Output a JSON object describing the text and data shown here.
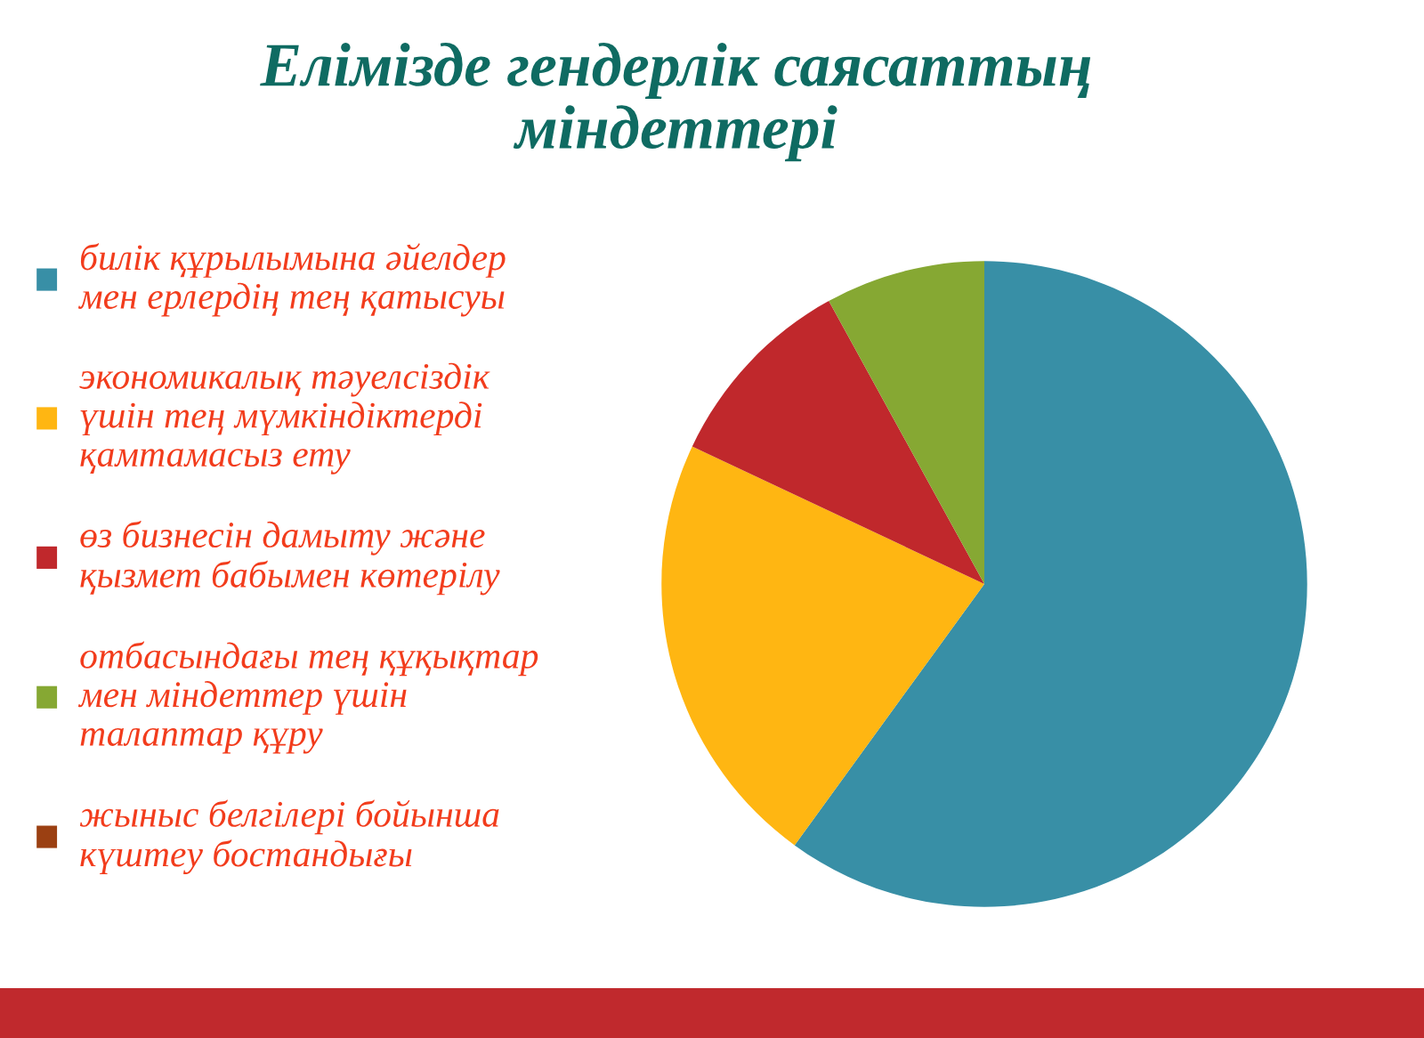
{
  "chart_data": {
    "type": "pie",
    "title": "Елімізде гендерлік саясаттың\nміндеттері",
    "categories": [
      "билік құрылымына әйелдер\nмен ерлердің тең қатысуы",
      "экономикалық тәуелсіздік\nүшін тең мүмкіндіктерді\nқамтамасыз ету",
      "өз бизнесін дамыту және\nқызмет бабымен көтерілу",
      "отбасындағы тең құқықтар\nмен міндеттер үшін\nталаптар құру",
      "жыныс белгілері бойынша\nкүштеу бостандығы"
    ],
    "values": [
      60,
      22,
      10,
      8,
      0
    ],
    "colors": [
      "#388fa6",
      "#ffb612",
      "#c0282c",
      "#86a833",
      "#9b4012"
    ],
    "legend": "left"
  }
}
